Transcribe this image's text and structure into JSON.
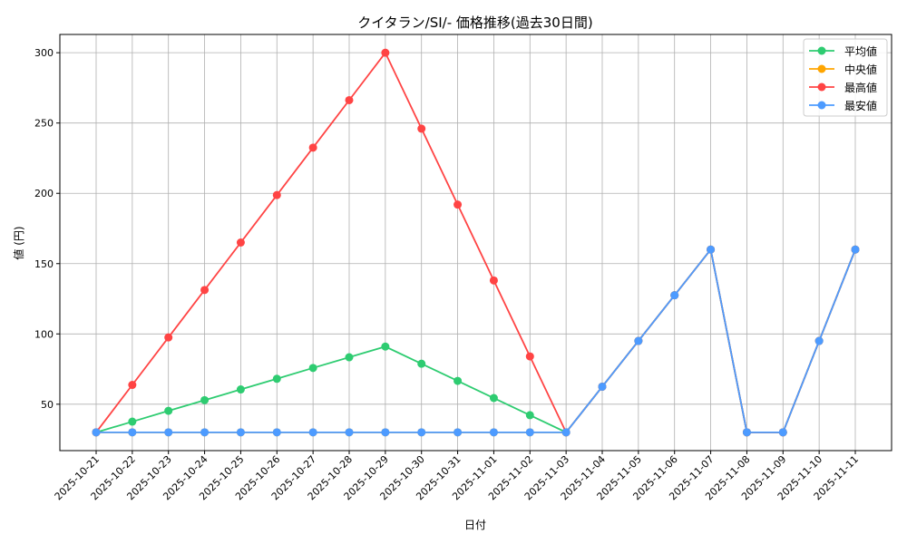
{
  "chart_data": {
    "type": "line",
    "title": "クイタラン/SI/- 価格推移(過去30日間)",
    "xlabel": "日付",
    "ylabel": "値 (円)",
    "ylim": [
      17,
      313
    ],
    "yticks": [
      50,
      100,
      150,
      200,
      250,
      300
    ],
    "grid": true,
    "legend_position": "top-right",
    "x": [
      "2025-10-21",
      "2025-10-22",
      "2025-10-23",
      "2025-10-24",
      "2025-10-25",
      "2025-10-26",
      "2025-10-27",
      "2025-10-28",
      "2025-10-29",
      "2025-10-30",
      "2025-10-31",
      "2025-11-01",
      "2025-11-02",
      "2025-11-03",
      "2025-11-04",
      "2025-11-05",
      "2025-11-06",
      "2025-11-07",
      "2025-11-08",
      "2025-11-09",
      "2025-11-10",
      "2025-11-11"
    ],
    "series": [
      {
        "name": "平均値",
        "color": "#2ecc71",
        "values": [
          30,
          37.6,
          45.3,
          52.9,
          60.5,
          68.1,
          75.8,
          83.4,
          91,
          78.8,
          66.6,
          54.4,
          42.2,
          30,
          62.5,
          95,
          127.5,
          160,
          30,
          30,
          95,
          160
        ]
      },
      {
        "name": "中央値",
        "color": "#ffa500",
        "values": [
          30,
          30,
          30,
          30,
          30,
          30,
          30,
          30,
          30,
          30,
          30,
          30,
          30,
          30,
          62.5,
          95,
          127.5,
          160,
          30,
          30,
          95,
          160
        ]
      },
      {
        "name": "最高値",
        "color": "#ff4444",
        "values": [
          30,
          63.75,
          97.5,
          131.25,
          165,
          198.75,
          232.5,
          266.25,
          300,
          246,
          192,
          138,
          84,
          30,
          62.5,
          95,
          127.5,
          160,
          30,
          30,
          95,
          160
        ]
      },
      {
        "name": "最安値",
        "color": "#4d9bff",
        "values": [
          30,
          30,
          30,
          30,
          30,
          30,
          30,
          30,
          30,
          30,
          30,
          30,
          30,
          30,
          62.5,
          95,
          127.5,
          160,
          30,
          30,
          95,
          160
        ]
      }
    ]
  }
}
